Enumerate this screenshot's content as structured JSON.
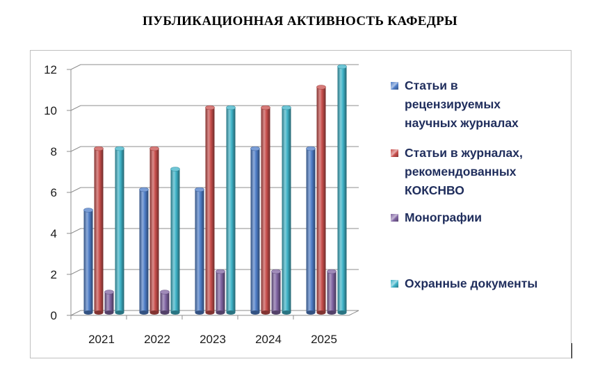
{
  "title": "ПУБЛИКАЦИОННАЯ АКТИВНОСТЬ КАФЕДРЫ",
  "chart_data": {
    "type": "bar",
    "title": "ПУБЛИКАЦИОННАЯ АКТИВНОСТЬ КАФЕДРЫ",
    "categories": [
      "2021",
      "2022",
      "2023",
      "2024",
      "2025"
    ],
    "series": [
      {
        "name": "Статьи в рецензируемых научных журналах",
        "values": [
          5,
          6,
          6,
          8,
          8
        ],
        "color": "#4f7ec8"
      },
      {
        "name": "Статьи в журналах, рекомендованных КОКСНВО",
        "values": [
          8,
          8,
          10,
          10,
          11
        ],
        "color": "#c84f4c"
      },
      {
        "name": "Монографии",
        "values": [
          1,
          1,
          2,
          2,
          2
        ],
        "color": "#8064a2"
      },
      {
        "name": "Охранные документы",
        "values": [
          8,
          7,
          10,
          10,
          12
        ],
        "color": "#3fb3c8"
      }
    ],
    "ylim": [
      0,
      12
    ],
    "yticks": [
      "0",
      "2",
      "4",
      "6",
      "8",
      "10",
      "12"
    ],
    "grid": true,
    "legend": "right",
    "style": "3d-cylinder"
  },
  "legend": {
    "items": [
      {
        "lines": [
          "Статьи в",
          "рецензируемых",
          "научных журналах"
        ],
        "color": "#4f7ec8"
      },
      {
        "lines": [
          "Статьи в журналах,",
          "рекомендованных",
          "КОКСНВО"
        ],
        "color": "#c84f4c"
      },
      {
        "lines": [
          "Монографии"
        ],
        "color": "#8064a2"
      },
      {
        "lines": [
          "Охранные документы"
        ],
        "color": "#3fb3c8"
      }
    ]
  }
}
